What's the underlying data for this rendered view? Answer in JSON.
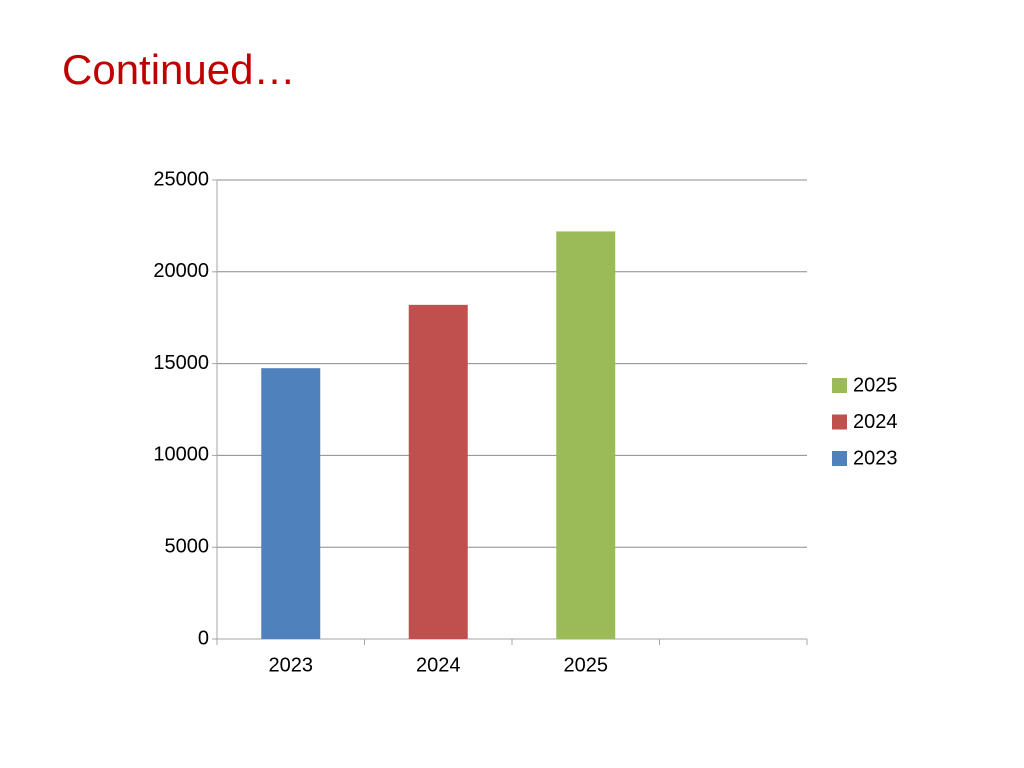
{
  "chart_data": {
    "type": "bar",
    "title": "Continued…",
    "categories": [
      "2023",
      "2024",
      "2025",
      null
    ],
    "series": [
      {
        "name": "2023",
        "color": "#4f81bd",
        "values": [
          14750,
          null,
          null,
          null
        ]
      },
      {
        "name": "2024",
        "color": "#c0504d",
        "values": [
          null,
          18200,
          null,
          null
        ]
      },
      {
        "name": "2025",
        "color": "#9bbb59",
        "values": [
          null,
          null,
          22200,
          null
        ]
      }
    ],
    "ylim": [
      0,
      25000
    ],
    "yticks": [
      0,
      5000,
      10000,
      15000,
      20000,
      25000
    ],
    "grid": true,
    "legend": "right"
  }
}
